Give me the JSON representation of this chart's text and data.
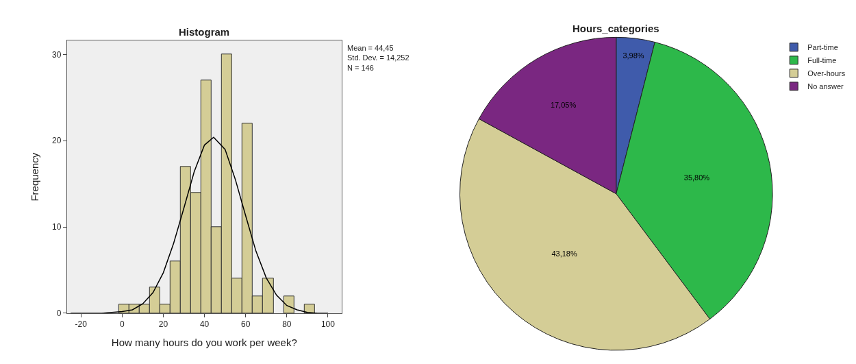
{
  "chart_data": [
    {
      "type": "histogram",
      "title": "Histogram",
      "xlabel": "How many hours do you work per week?",
      "ylabel": "Frequency",
      "bins": [
        -1.5,
        3.5,
        8.5,
        13.5,
        18.5,
        23.5,
        28.5,
        33.5,
        38.5,
        43.5,
        48.5,
        53.5,
        58.5,
        63.5,
        68.5,
        73.5,
        78.5,
        83.5,
        88.5,
        93.5
      ],
      "values": [
        1,
        1,
        1,
        3,
        1,
        6,
        17,
        14,
        27,
        10,
        30,
        4,
        22,
        2,
        4,
        0,
        2,
        0,
        1
      ],
      "color": "#d4cd96",
      "series": [
        {
          "type": "line",
          "color": "#000000",
          "x": [
            -25,
            -20,
            -15,
            -10,
            -5,
            0,
            5,
            10,
            15,
            20,
            25,
            30,
            35,
            40,
            44.45,
            50,
            55,
            60,
            65,
            70,
            75,
            80,
            85,
            90,
            95,
            100
          ],
          "values": [
            0.0,
            0.0,
            0.0,
            0.0,
            0.1,
            0.2,
            0.4,
            1.1,
            2.4,
            4.7,
            8.1,
            12.2,
            16.4,
            19.5,
            20.4,
            19.0,
            15.5,
            11.3,
            7.2,
            4.1,
            2.1,
            0.9,
            0.4,
            0.1,
            0.0,
            0.0
          ]
        }
      ],
      "xlim": [
        -26.8,
        106.6
      ],
      "xticks": [
        -20,
        0,
        20,
        40,
        60,
        80,
        100
      ],
      "ylim": [
        0,
        31.6
      ],
      "yticks": [
        0,
        10,
        20,
        30
      ],
      "grid": false,
      "annotations": [
        "Mean = 44,45",
        "Std. Dev. = 14,252",
        "N = 146"
      ]
    },
    {
      "type": "pie",
      "title": "Hours_categories",
      "categories": [
        "Part-time",
        "Full-time",
        "Over-hours",
        "No answer"
      ],
      "values": [
        3.98,
        35.8,
        43.18,
        17.05
      ],
      "colors": [
        "#3f5bab",
        "#2db84a",
        "#d4cd96",
        "#7a2781"
      ],
      "value_labels": [
        "3,98%",
        "35,80%",
        "43,18%",
        "17,05%"
      ],
      "legend": "top right"
    }
  ]
}
